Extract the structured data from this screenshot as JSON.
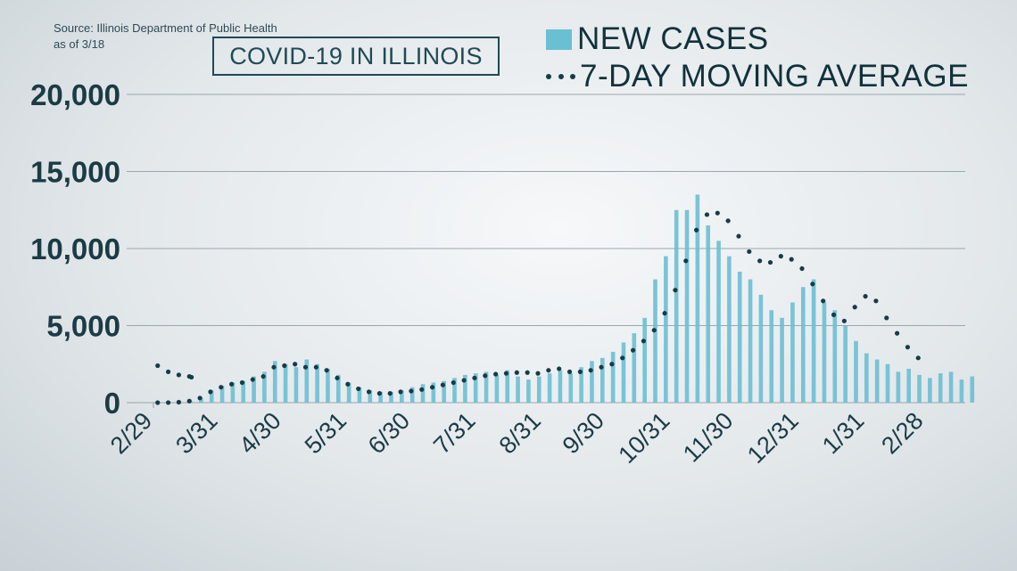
{
  "source": {
    "line1": "Source: Illinois Department of Public Health",
    "line2": "as of 3/18"
  },
  "title": "COVID-19 IN ILLINOIS",
  "legend": {
    "bars_label": "NEW CASES",
    "line_label": "7-DAY MOVING AVERAGE"
  },
  "colors": {
    "bars": "#6bbfd3",
    "moving_average": "#153d47",
    "text": "#1f4a55",
    "grid": "#9aa6ad"
  },
  "chart_data": {
    "type": "bar",
    "title": "COVID-19 IN ILLINOIS",
    "xlabel": "",
    "ylabel": "",
    "ylim": [
      0,
      20000
    ],
    "yticks": [
      0,
      5000,
      10000,
      15000,
      20000
    ],
    "ytick_labels": [
      "0",
      "5,000",
      "10,000",
      "15,000",
      "20,000"
    ],
    "xtick_labels": [
      "2/29",
      "3/31",
      "4/30",
      "5/31",
      "6/30",
      "7/31",
      "8/31",
      "9/30",
      "10/31",
      "11/30",
      "12/31",
      "1/31",
      "2/28"
    ],
    "grid": "horizontal",
    "legend_position": "top-right",
    "series": [
      {
        "name": "NEW CASES",
        "type": "bar",
        "values_sampled_every_5_days_from_3_2": [
          0,
          10,
          40,
          100,
          300,
          800,
          1100,
          1300,
          1400,
          1700,
          2000,
          2700,
          2500,
          2300,
          2800,
          2500,
          2200,
          1800,
          1300,
          1000,
          800,
          700,
          700,
          800,
          1000,
          1200,
          1300,
          1400,
          1600,
          1800,
          1900,
          2000,
          1800,
          2100,
          1700,
          1500,
          1700,
          1900,
          2100,
          1900,
          2300,
          2700,
          2900,
          3300,
          3900,
          4500,
          5500,
          8000,
          9500,
          12500,
          12500,
          13500,
          11500,
          10500,
          9500,
          8500,
          8000,
          7000,
          6000,
          5500,
          6500,
          7500,
          8000,
          6500,
          6000,
          5000,
          4000,
          3200,
          2800,
          2500,
          2000,
          2200,
          1800,
          1600,
          1900,
          2000,
          1500,
          1700
        ]
      },
      {
        "name": "7-DAY MOVING AVERAGE",
        "type": "line",
        "style": "dotted",
        "points": [
          {
            "x": "3/2",
            "y": 0
          },
          {
            "x": "3/7",
            "y": 5
          },
          {
            "x": "3/12",
            "y": 30
          },
          {
            "x": "3/17",
            "y": 100
          },
          {
            "x": "3/22",
            "y": 300
          },
          {
            "x": "3/27",
            "y": 700
          },
          {
            "x": "4/1",
            "y": 1000
          },
          {
            "x": "4/6",
            "y": 1200
          },
          {
            "x": "4/11",
            "y": 1300
          },
          {
            "x": "4/16",
            "y": 1500
          },
          {
            "x": "4/21",
            "y": 1700
          },
          {
            "x": "4/26",
            "y": 2300
          },
          {
            "x": "5/1",
            "y": 2400
          },
          {
            "x": "5/6",
            "y": 2500
          },
          {
            "x": "5/11",
            "y": 2300
          },
          {
            "x": "5/16",
            "y": 2300
          },
          {
            "x": "5/21",
            "y": 2100
          },
          {
            "x": "5/26",
            "y": 1600
          },
          {
            "x": "5/31",
            "y": 1200
          },
          {
            "x": "6/5",
            "y": 900
          },
          {
            "x": "6/10",
            "y": 700
          },
          {
            "x": "6/15",
            "y": 600
          },
          {
            "x": "6/20",
            "y": 600
          },
          {
            "x": "6/25",
            "y": 700
          },
          {
            "x": "6/30",
            "y": 750
          },
          {
            "x": "7/5",
            "y": 850
          },
          {
            "x": "7/10",
            "y": 1000
          },
          {
            "x": "7/15",
            "y": 1150
          },
          {
            "x": "7/20",
            "y": 1300
          },
          {
            "x": "7/25",
            "y": 1450
          },
          {
            "x": "7/30",
            "y": 1600
          },
          {
            "x": "8/4",
            "y": 1750
          },
          {
            "x": "8/9",
            "y": 1850
          },
          {
            "x": "8/14",
            "y": 1900
          },
          {
            "x": "8/19",
            "y": 1950
          },
          {
            "x": "8/24",
            "y": 1950
          },
          {
            "x": "8/29",
            "y": 1900
          },
          {
            "x": "9/3",
            "y": 2100
          },
          {
            "x": "9/8",
            "y": 2200
          },
          {
            "x": "9/13",
            "y": 2000
          },
          {
            "x": "9/18",
            "y": 2000
          },
          {
            "x": "9/23",
            "y": 2100
          },
          {
            "x": "9/28",
            "y": 2300
          },
          {
            "x": "10/3",
            "y": 2500
          },
          {
            "x": "10/8",
            "y": 2900
          },
          {
            "x": "10/13",
            "y": 3400
          },
          {
            "x": "10/18",
            "y": 4000
          },
          {
            "x": "10/23",
            "y": 4700
          },
          {
            "x": "10/28",
            "y": 5800
          },
          {
            "x": "11/2",
            "y": 7300
          },
          {
            "x": "11/7",
            "y": 9200
          },
          {
            "x": "11/12",
            "y": 11200
          },
          {
            "x": "11/17",
            "y": 12200
          },
          {
            "x": "11/22",
            "y": 12300
          },
          {
            "x": "11/27",
            "y": 11800
          },
          {
            "x": "12/2",
            "y": 10800
          },
          {
            "x": "12/7",
            "y": 9800
          },
          {
            "x": "12/12",
            "y": 9200
          },
          {
            "x": "12/17",
            "y": 9100
          },
          {
            "x": "12/22",
            "y": 9500
          },
          {
            "x": "12/27",
            "y": 9300
          },
          {
            "x": "1/1",
            "y": 8700
          },
          {
            "x": "1/6",
            "y": 7700
          },
          {
            "x": "1/11",
            "y": 6600
          },
          {
            "x": "1/16",
            "y": 5700
          },
          {
            "x": "1/21",
            "y": 5300
          },
          {
            "x": "1/26",
            "y": 6200
          },
          {
            "x": "1/31",
            "y": 6900
          },
          {
            "x": "2/5",
            "y": 6600
          },
          {
            "x": "2/10",
            "y": 5500
          },
          {
            "x": "2/15",
            "y": 4500
          },
          {
            "x": "2/20",
            "y": 3600
          },
          {
            "x": "2/25",
            "y": 2900
          },
          {
            "x": "3/2",
            "y": 2400
          },
          {
            "x": "3/7",
            "y": 2000
          },
          {
            "x": "3/12",
            "y": 1800
          },
          {
            "x": "3/17",
            "y": 1700
          },
          {
            "x": "3/18",
            "y": 1650
          }
        ]
      }
    ]
  }
}
